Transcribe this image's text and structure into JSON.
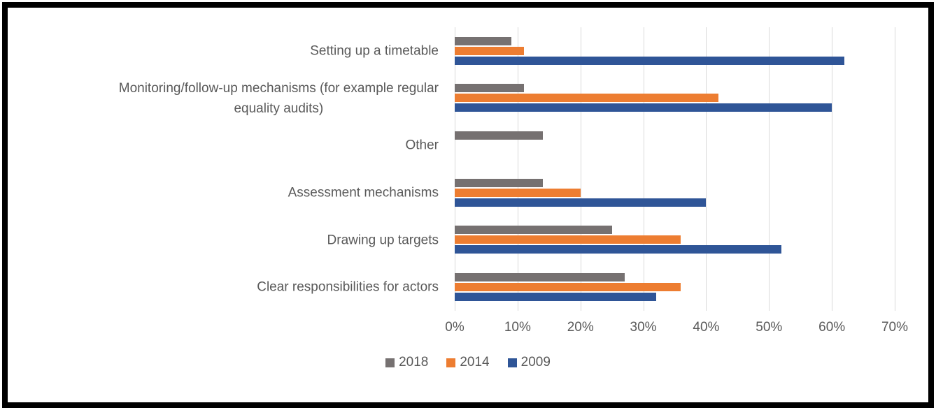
{
  "chart_data": {
    "type": "bar",
    "orientation": "horizontal",
    "title": "",
    "xlabel": "",
    "ylabel": "",
    "categories": [
      "Setting up a timetable",
      "Monitoring/follow-up mechanisms (for example regular\nequality audits)",
      "Other",
      "Assessment mechanisms",
      "Drawing up targets",
      "Clear responsibilities for actors"
    ],
    "series": [
      {
        "name": "2018",
        "color": "#767171",
        "values": [
          9,
          11,
          14,
          14,
          25,
          27
        ]
      },
      {
        "name": "2014",
        "color": "#ED7D31",
        "values": [
          11,
          42,
          0,
          20,
          36,
          36
        ]
      },
      {
        "name": "2009",
        "color": "#2F5597",
        "values": [
          62,
          60,
          0,
          40,
          52,
          32
        ]
      }
    ],
    "x_ticks": [
      "0%",
      "10%",
      "20%",
      "30%",
      "40%",
      "50%",
      "60%",
      "70%"
    ],
    "xlim": [
      0,
      70
    ],
    "grid": true,
    "legend_position": "bottom",
    "colors": {
      "gridline": "#D9D9D9",
      "text": "#595959",
      "frame_border": "#000000",
      "background": "#FFFFFF"
    }
  }
}
